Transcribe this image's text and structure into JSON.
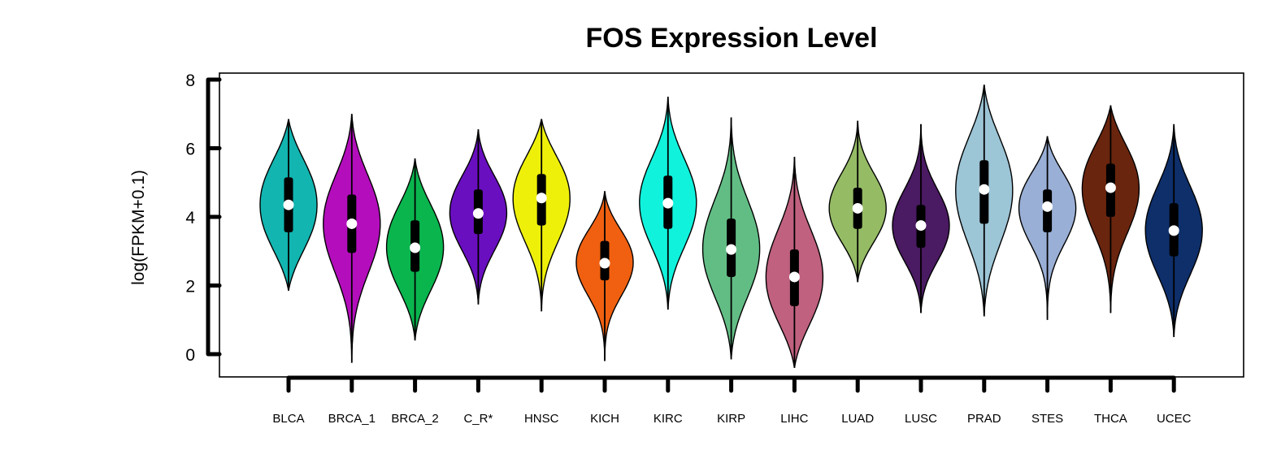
{
  "chart_data": {
    "type": "violin",
    "title": "FOS Expression Level",
    "xlabel": "",
    "ylabel": "log(FPKM+0.1)",
    "ylim": [
      -0.7,
      8.2
    ],
    "yticks": [
      "0",
      "2",
      "4",
      "6",
      "8"
    ],
    "grid": false,
    "legend": "none",
    "categories": [
      "BLCA",
      "BRCA_1",
      "BRCA_2",
      "C_R*",
      "HNSC",
      "KICH",
      "KIRC",
      "KIRP",
      "LIHC",
      "LUAD",
      "LUSC",
      "PRAD",
      "STES",
      "THCA",
      "UCEC"
    ],
    "series": [
      {
        "category": "BLCA",
        "color": "#12B5B0",
        "min": 1.85,
        "q1": 3.55,
        "median": 4.35,
        "q3": 5.15,
        "max": 6.85
      },
      {
        "category": "BRCA_1",
        "color": "#B40EBC",
        "min": -0.25,
        "q1": 2.95,
        "median": 3.8,
        "q3": 4.65,
        "max": 7.0
      },
      {
        "category": "BRCA_2",
        "color": "#0AB54E",
        "min": 0.4,
        "q1": 2.4,
        "median": 3.1,
        "q3": 3.9,
        "max": 5.7
      },
      {
        "category": "C_R*",
        "color": "#6A0FC0",
        "min": 1.45,
        "q1": 3.5,
        "median": 4.1,
        "q3": 4.8,
        "max": 6.55
      },
      {
        "category": "HNSC",
        "color": "#EEF00A",
        "min": 1.25,
        "q1": 3.75,
        "median": 4.55,
        "q3": 5.25,
        "max": 6.85
      },
      {
        "category": "KICH",
        "color": "#F06010",
        "min": -0.2,
        "q1": 2.15,
        "median": 2.65,
        "q3": 3.3,
        "max": 4.75
      },
      {
        "category": "KIRC",
        "color": "#10F2DC",
        "min": 1.3,
        "q1": 3.65,
        "median": 4.4,
        "q3": 5.2,
        "max": 7.5
      },
      {
        "category": "KIRP",
        "color": "#62BD85",
        "min": -0.15,
        "q1": 2.25,
        "median": 3.05,
        "q3": 3.95,
        "max": 6.9
      },
      {
        "category": "LIHC",
        "color": "#C0617F",
        "min": -0.4,
        "q1": 1.4,
        "median": 2.25,
        "q3": 3.05,
        "max": 5.75
      },
      {
        "category": "LUAD",
        "color": "#95BB65",
        "min": 2.1,
        "q1": 3.65,
        "median": 4.25,
        "q3": 4.85,
        "max": 6.8
      },
      {
        "category": "LUSC",
        "color": "#4A1A62",
        "min": 1.2,
        "q1": 3.1,
        "median": 3.75,
        "q3": 4.35,
        "max": 6.7
      },
      {
        "category": "PRAD",
        "color": "#9CC5D6",
        "min": 1.1,
        "q1": 3.8,
        "median": 4.8,
        "q3": 5.65,
        "max": 7.85
      },
      {
        "category": "STES",
        "color": "#9AAFD6",
        "min": 1.0,
        "q1": 3.55,
        "median": 4.3,
        "q3": 4.8,
        "max": 6.35
      },
      {
        "category": "THCA",
        "color": "#6A250E",
        "min": 1.2,
        "q1": 4.0,
        "median": 4.85,
        "q3": 5.55,
        "max": 7.25
      },
      {
        "category": "UCEC",
        "color": "#0E2F6A",
        "min": 0.5,
        "q1": 2.85,
        "median": 3.6,
        "q3": 4.4,
        "max": 6.7
      }
    ]
  }
}
